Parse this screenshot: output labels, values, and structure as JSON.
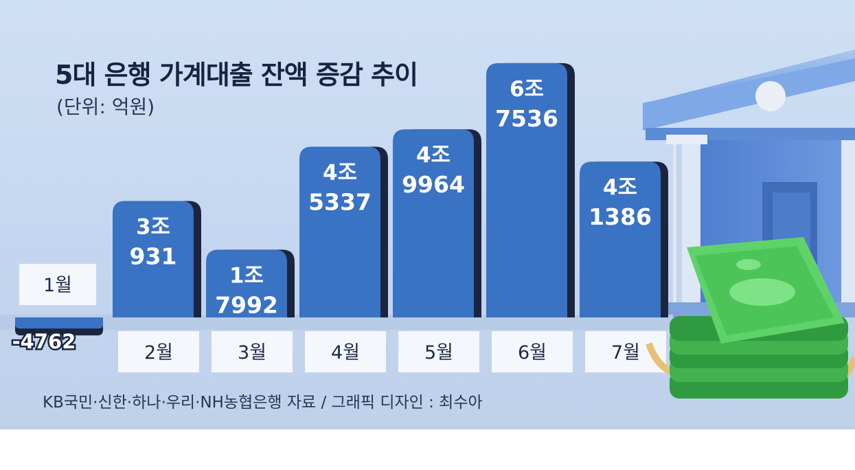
{
  "title": "5대 은행 가계대출 잔액 증감 추이",
  "unit": "(단위: 억원)",
  "source": "KB국민·신한·하나·우리·NH농협은행 자료 / 그래픽 디자인 : 최수아",
  "chart_data": {
    "type": "bar",
    "title": "5대 은행 가계대출 잔액 증감 추이",
    "unit": "(단위: 억원)",
    "categories": [
      "1월",
      "2월",
      "3월",
      "4월",
      "5월",
      "6월",
      "7월"
    ],
    "values": [
      -4762,
      30931,
      17992,
      45337,
      49964,
      67536,
      41386
    ],
    "labels": [
      {
        "line1": "",
        "line2": "-4762"
      },
      {
        "line1": "3조",
        "line2": "931"
      },
      {
        "line1": "1조",
        "line2": "7992"
      },
      {
        "line1": "4조",
        "line2": "5337"
      },
      {
        "line1": "4조",
        "line2": "9964"
      },
      {
        "line1": "6조",
        "line2": "7536"
      },
      {
        "line1": "4조",
        "line2": "1386"
      }
    ],
    "colors": {
      "bar": "#3a72c4",
      "bar_shadow": "#1b2540",
      "background": "#c8daf2"
    }
  }
}
